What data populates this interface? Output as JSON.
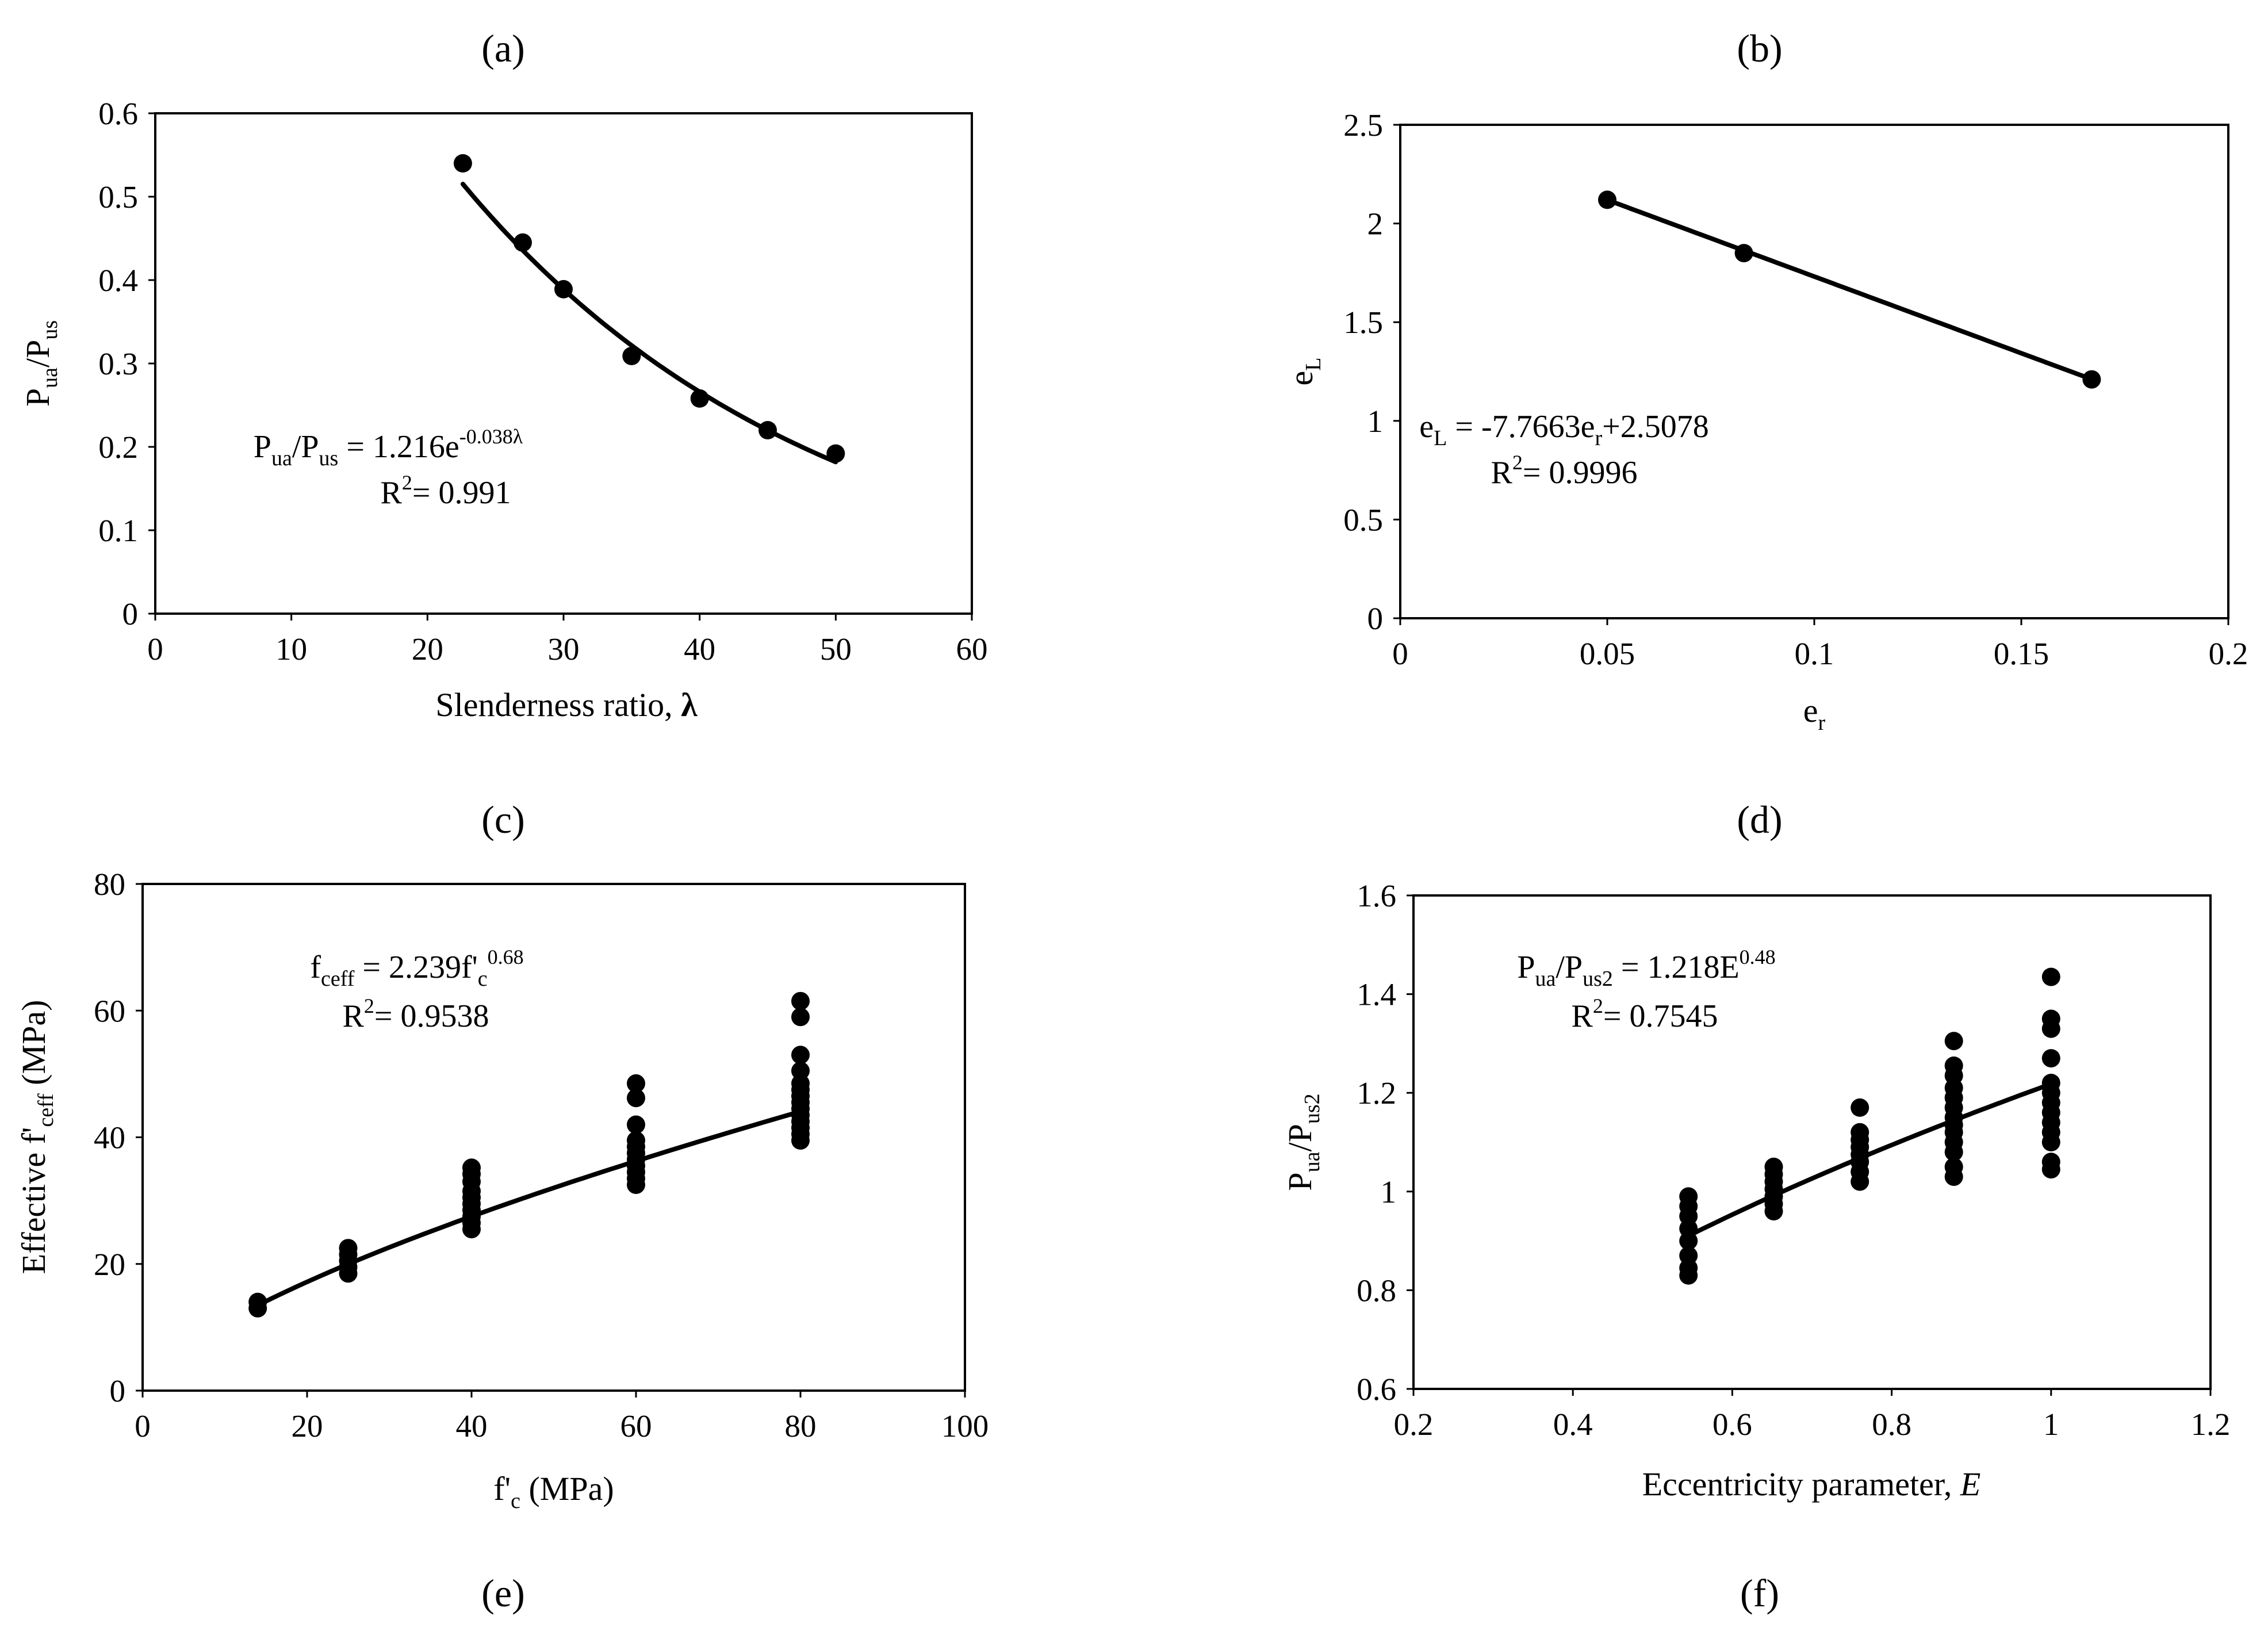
{
  "panel_labels": [
    "(a)",
    "(b)",
    "(c)",
    "(d)",
    "(e)",
    "(f)"
  ],
  "chart_data": [
    {
      "id": "a",
      "type": "scatter",
      "x_title": {
        "main": "Slenderness ratio, ",
        "symbol": "λ"
      },
      "y_title": [
        {
          "t": "P",
          "s": "n"
        },
        {
          "t": "ua",
          "s": "sub"
        },
        {
          "t": "/P",
          "s": "n"
        },
        {
          "t": "us",
          "s": "sub"
        }
      ],
      "xlim": [
        0,
        60
      ],
      "ylim": [
        0,
        0.6
      ],
      "xticks": [
        0,
        10,
        20,
        30,
        40,
        50,
        60
      ],
      "xtick_labels": [
        "0",
        "10",
        "20",
        "30",
        "40",
        "50",
        "60"
      ],
      "yticks": [
        0,
        0.1,
        0.2,
        0.3,
        0.4,
        0.5,
        0.6
      ],
      "ytick_labels": [
        "0",
        "0.1",
        "0.2",
        "0.3",
        "0.4",
        "0.5",
        "0.6"
      ],
      "points": [
        [
          22.6,
          0.54
        ],
        [
          27,
          0.445
        ],
        [
          30,
          0.389
        ],
        [
          35,
          0.309
        ],
        [
          40,
          0.258
        ],
        [
          45,
          0.22
        ],
        [
          50,
          0.192
        ]
      ],
      "fit": {
        "kind": "exp",
        "a": 1.216,
        "b": -0.038,
        "range": [
          22.6,
          50
        ]
      },
      "equation": [
        {
          "t": "P",
          "s": "n"
        },
        {
          "t": "ua",
          "s": "sub"
        },
        {
          "t": "/P",
          "s": "n"
        },
        {
          "t": "us",
          "s": "sub"
        },
        {
          "t": " = 1.216e",
          "s": "n"
        },
        {
          "t": "-0.038λ",
          "s": "sup"
        }
      ],
      "r2": [
        {
          "t": "R",
          "s": "n"
        },
        {
          "t": "2",
          "s": "sup"
        },
        {
          "t": "= 0.991",
          "s": "n"
        }
      ]
    },
    {
      "id": "b",
      "type": "line",
      "x_title": [
        {
          "t": "e",
          "s": "n"
        },
        {
          "t": "r",
          "s": "sub"
        }
      ],
      "y_title": [
        {
          "t": "e",
          "s": "n"
        },
        {
          "t": "L",
          "s": "sub"
        }
      ],
      "xlim": [
        0,
        0.2
      ],
      "ylim": [
        0,
        2.5
      ],
      "xticks": [
        0,
        0.05,
        0.1,
        0.15,
        0.2
      ],
      "xtick_labels": [
        "0",
        "0.05",
        "0.1",
        "0.15",
        "0.2"
      ],
      "yticks": [
        0,
        0.5,
        1,
        1.5,
        2,
        2.5
      ],
      "ytick_labels": [
        "0",
        "0.5",
        "1",
        "1.5",
        "2",
        "2.5"
      ],
      "points": [
        [
          0.05,
          2.12
        ],
        [
          0.083,
          1.85
        ],
        [
          0.167,
          1.21
        ]
      ],
      "fit": {
        "kind": "linear",
        "m": -7.7663,
        "c": 2.5078,
        "range": [
          0.05,
          0.167
        ]
      },
      "equation": [
        {
          "t": "e",
          "s": "n"
        },
        {
          "t": "L",
          "s": "sub"
        },
        {
          "t": " = -7.7663e",
          "s": "n"
        },
        {
          "t": "r",
          "s": "sub"
        },
        {
          "t": "+2.5078",
          "s": "n"
        }
      ],
      "r2": [
        {
          "t": "R",
          "s": "n"
        },
        {
          "t": "2",
          "s": "sup"
        },
        {
          "t": "= 0.9996",
          "s": "n"
        }
      ]
    },
    {
      "id": "c",
      "type": "scatter",
      "x_title": [
        {
          "t": "f'",
          "s": "n"
        },
        {
          "t": "c",
          "s": "sub"
        },
        {
          "t": " (MPa)",
          "s": "n"
        }
      ],
      "y_title": [
        {
          "t": "Effective f'",
          "s": "n"
        },
        {
          "t": "ceff",
          "s": "sub"
        },
        {
          "t": " (MPa)",
          "s": "n"
        }
      ],
      "xlim": [
        0,
        100
      ],
      "ylim": [
        0,
        80
      ],
      "xticks": [
        0,
        20,
        40,
        60,
        80,
        100
      ],
      "xtick_labels": [
        "0",
        "20",
        "40",
        "60",
        "80",
        "100"
      ],
      "yticks": [
        0,
        20,
        40,
        60,
        80
      ],
      "ytick_labels": [
        "0",
        "20",
        "40",
        "60",
        "80"
      ],
      "points": [
        [
          14,
          13
        ],
        [
          14,
          14
        ],
        [
          25,
          18.5
        ],
        [
          25,
          19.5
        ],
        [
          25,
          20.5
        ],
        [
          25,
          21.5
        ],
        [
          25,
          22.5
        ],
        [
          40,
          25.5
        ],
        [
          40,
          26.5
        ],
        [
          40,
          27.5
        ],
        [
          40,
          28.5
        ],
        [
          40,
          29.5
        ],
        [
          40,
          30.5
        ],
        [
          40,
          31.5
        ],
        [
          40,
          33
        ],
        [
          40,
          34.2
        ],
        [
          40,
          35.2
        ],
        [
          60,
          32.5
        ],
        [
          60,
          33.5
        ],
        [
          60,
          34.5
        ],
        [
          60,
          35.5
        ],
        [
          60,
          36.5
        ],
        [
          60,
          37.5
        ],
        [
          60,
          38.5
        ],
        [
          60,
          39.5
        ],
        [
          60,
          42
        ],
        [
          60,
          46.2
        ],
        [
          60,
          48.5
        ],
        [
          80,
          39.5
        ],
        [
          80,
          40.5
        ],
        [
          80,
          41.5
        ],
        [
          80,
          42.5
        ],
        [
          80,
          43.5
        ],
        [
          80,
          44.5
        ],
        [
          80,
          45.5
        ],
        [
          80,
          46.5
        ],
        [
          80,
          47.5
        ],
        [
          80,
          48.5
        ],
        [
          80,
          50.5
        ],
        [
          80,
          53
        ],
        [
          80,
          59
        ],
        [
          80,
          61.5
        ]
      ],
      "fit": {
        "kind": "power",
        "a": 2.239,
        "b": 0.68,
        "range": [
          14,
          80
        ]
      },
      "equation": [
        {
          "t": "f",
          "s": "n"
        },
        {
          "t": "ceff",
          "s": "sub"
        },
        {
          "t": " = 2.239f'",
          "s": "n"
        },
        {
          "t": "c",
          "s": "sub"
        },
        {
          "t": "0.68",
          "s": "sup"
        }
      ],
      "r2": [
        {
          "t": "R",
          "s": "n"
        },
        {
          "t": "2",
          "s": "sup"
        },
        {
          "t": "= 0.9538",
          "s": "n"
        }
      ]
    },
    {
      "id": "d",
      "type": "scatter",
      "x_title": [
        {
          "t": "Eccentricity parameter, ",
          "s": "n"
        },
        {
          "t": "E",
          "s": "it"
        }
      ],
      "y_title": [
        {
          "t": "P",
          "s": "n"
        },
        {
          "t": "ua",
          "s": "sub"
        },
        {
          "t": "/P",
          "s": "n"
        },
        {
          "t": "us2",
          "s": "sub"
        }
      ],
      "xlim": [
        0.2,
        1.2
      ],
      "ylim": [
        0.6,
        1.6
      ],
      "xticks": [
        0.2,
        0.4,
        0.6,
        0.8,
        1,
        1.2
      ],
      "xtick_labels": [
        "0.2",
        "0.4",
        "0.6",
        "0.8",
        "1",
        "1.2"
      ],
      "yticks": [
        0.6,
        0.8,
        1,
        1.2,
        1.4,
        1.6
      ],
      "ytick_labels": [
        "0.6",
        "0.8",
        "1",
        "1.2",
        "1.4",
        "1.6"
      ],
      "points": [
        [
          0.545,
          0.83
        ],
        [
          0.545,
          0.845
        ],
        [
          0.545,
          0.87
        ],
        [
          0.545,
          0.9
        ],
        [
          0.545,
          0.925
        ],
        [
          0.545,
          0.95
        ],
        [
          0.545,
          0.97
        ],
        [
          0.545,
          0.99
        ],
        [
          0.652,
          0.96
        ],
        [
          0.652,
          0.975
        ],
        [
          0.652,
          0.99
        ],
        [
          0.652,
          1.005
        ],
        [
          0.652,
          1.02
        ],
        [
          0.652,
          1.035
        ],
        [
          0.652,
          1.05
        ],
        [
          0.76,
          1.02
        ],
        [
          0.76,
          1.04
        ],
        [
          0.76,
          1.06
        ],
        [
          0.76,
          1.075
        ],
        [
          0.76,
          1.09
        ],
        [
          0.76,
          1.105
        ],
        [
          0.76,
          1.12
        ],
        [
          0.76,
          1.17
        ],
        [
          0.878,
          1.03
        ],
        [
          0.878,
          1.05
        ],
        [
          0.878,
          1.08
        ],
        [
          0.878,
          1.1
        ],
        [
          0.878,
          1.12
        ],
        [
          0.878,
          1.135
        ],
        [
          0.878,
          1.15
        ],
        [
          0.878,
          1.17
        ],
        [
          0.878,
          1.19
        ],
        [
          0.878,
          1.21
        ],
        [
          0.878,
          1.235
        ],
        [
          0.878,
          1.255
        ],
        [
          0.878,
          1.305
        ],
        [
          1,
          1.045
        ],
        [
          1,
          1.06
        ],
        [
          1,
          1.1
        ],
        [
          1,
          1.12
        ],
        [
          1,
          1.14
        ],
        [
          1,
          1.16
        ],
        [
          1,
          1.18
        ],
        [
          1,
          1.2
        ],
        [
          1,
          1.22
        ],
        [
          1,
          1.27
        ],
        [
          1,
          1.33
        ],
        [
          1,
          1.35
        ],
        [
          1,
          1.435
        ]
      ],
      "fit": {
        "kind": "power",
        "a": 1.218,
        "b": 0.48,
        "range": [
          0.545,
          1
        ]
      },
      "equation": [
        {
          "t": "P",
          "s": "n"
        },
        {
          "t": "ua",
          "s": "sub"
        },
        {
          "t": "/P",
          "s": "n"
        },
        {
          "t": "us2",
          "s": "sub"
        },
        {
          "t": " = 1.218E",
          "s": "n"
        },
        {
          "t": "0.48",
          "s": "sup"
        }
      ],
      "r2": [
        {
          "t": "R",
          "s": "n"
        },
        {
          "t": "2",
          "s": "sup"
        },
        {
          "t": "= 0.7545",
          "s": "n"
        }
      ]
    }
  ]
}
